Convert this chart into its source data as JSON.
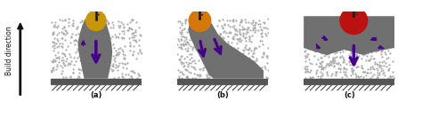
{
  "bg_color": "#ffffff",
  "powder_dot_color": "#aaaaaa",
  "melt_color": "#707070",
  "plate_color": "#555555",
  "hatch_color": "#333333",
  "beam_color": "#111111",
  "arrow_beam_color": "#333333",
  "melt_pool_a_color": "#c8960a",
  "melt_pool_b_color": "#d4780a",
  "melt_pool_c_color": "#bb1111",
  "arrow_color": "#440088",
  "label_color": "#111111",
  "build_arrow_color": "#111111",
  "panel_labels": [
    "(a)",
    "(b)",
    "(c)"
  ],
  "panel_label_fontsize": 6,
  "build_label": "Build direction",
  "build_label_fontsize": 5.5
}
